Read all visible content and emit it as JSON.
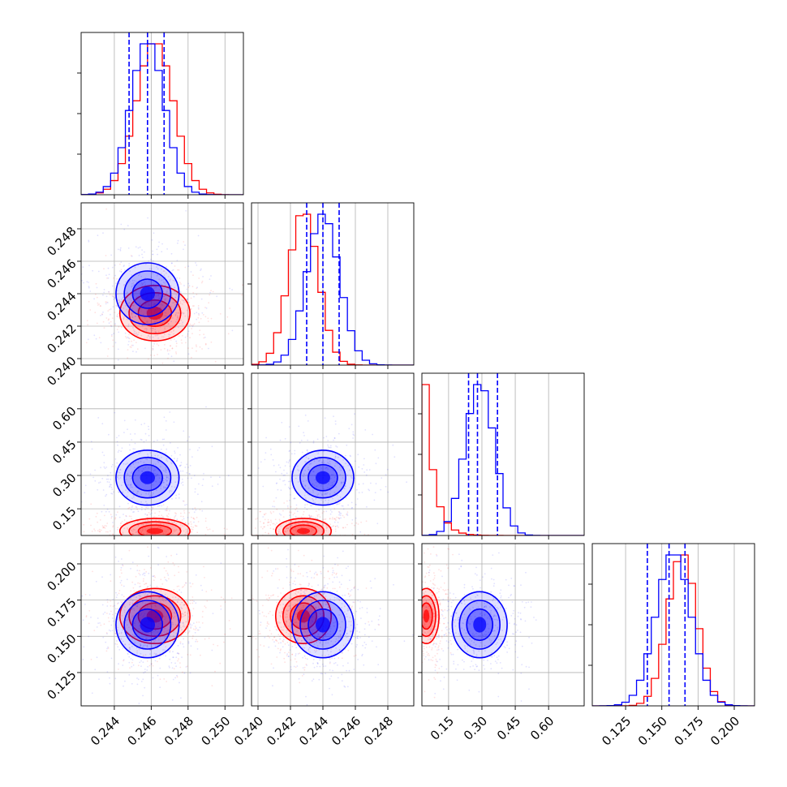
{
  "chart_data": {
    "type": "corner",
    "series": [
      {
        "color": "#0000ff"
      },
      {
        "color": "#ff0000"
      }
    ],
    "params": [
      {
        "range": [
          0.2422,
          0.251
        ],
        "ticks": [
          "0.244",
          "0.246",
          "0.248",
          "0.250"
        ],
        "tick_values": [
          0.244,
          0.246,
          0.248,
          0.25
        ]
      },
      {
        "range": [
          0.2396,
          0.2496
        ],
        "ticks": [
          "0.240",
          "0.242",
          "0.244",
          "0.246",
          "0.248"
        ],
        "tick_values": [
          0.24,
          0.242,
          0.244,
          0.246,
          0.248
        ]
      },
      {
        "range": [
          0.03,
          0.76
        ],
        "ticks": [
          "0.15",
          "0.30",
          "0.45",
          "0.60"
        ],
        "tick_values": [
          0.15,
          0.3,
          0.45,
          0.6
        ]
      },
      {
        "range": [
          0.102,
          0.214
        ],
        "ticks": [
          "0.125",
          "0.150",
          "0.175",
          "0.200"
        ],
        "tick_values": [
          0.125,
          0.15,
          0.175,
          0.2
        ]
      }
    ],
    "distributions": {
      "blue": [
        {
          "mean": 0.2458,
          "sd": 0.0009
        },
        {
          "mean": 0.244,
          "sd": 0.001
        },
        {
          "mean": 0.29,
          "sd": 0.065
        },
        {
          "mean": 0.158,
          "sd": 0.012
        }
      ],
      "red": [
        {
          "mean": 0.2462,
          "sd": 0.001
        },
        {
          "mean": 0.2428,
          "sd": 0.0009
        },
        {
          "mean": 0.05,
          "sd": 0.03
        },
        {
          "mean": 0.164,
          "sd": 0.01
        }
      ]
    },
    "quantiles_blue": [
      [
        0.2448,
        0.2458,
        0.2467
      ],
      [
        0.243,
        0.244,
        0.245
      ],
      [
        0.24,
        0.28,
        0.37
      ],
      [
        0.14,
        0.155,
        0.166
      ]
    ],
    "grid": true
  }
}
